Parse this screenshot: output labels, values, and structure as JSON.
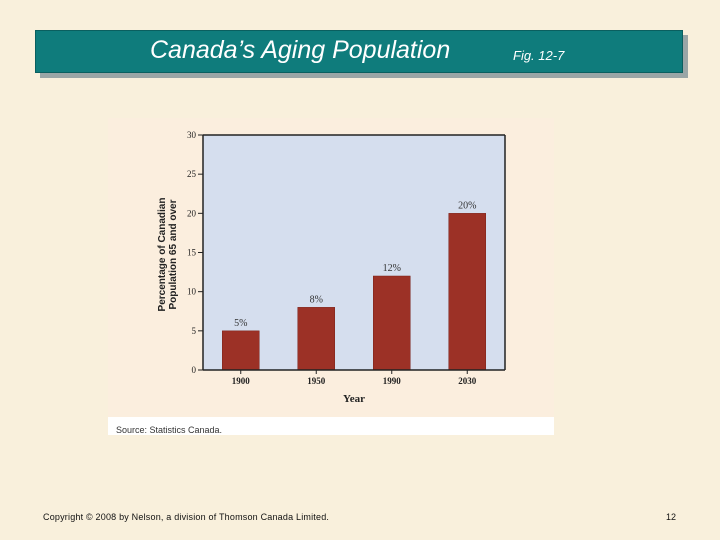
{
  "slide": {
    "title": "Canada’s Aging Population",
    "fig_label": "Fig. 12-7",
    "footer": "Copyright © 2008 by Nelson, a division of Thomson Canada Limited.",
    "page_number": "12",
    "source": "Source: Statistics Canada."
  },
  "colors": {
    "background": "#f9f0dc",
    "title_bar": "#0f7c7c",
    "plot_area": "#d5deee",
    "bar": "#9c3126"
  },
  "chart_data": {
    "type": "bar",
    "categories": [
      "1900",
      "1950",
      "1990",
      "2030"
    ],
    "values": [
      5,
      8,
      12,
      20
    ],
    "data_labels": [
      "5%",
      "8%",
      "12%",
      "20%"
    ],
    "title": "",
    "xlabel": "Year",
    "ylabel_lines": [
      "Percentage of Canadian",
      "Population 65 and over"
    ],
    "ylim": [
      0,
      30
    ],
    "yticks": [
      0,
      5,
      10,
      15,
      20,
      25,
      30
    ],
    "grid": false,
    "legend": "none"
  }
}
